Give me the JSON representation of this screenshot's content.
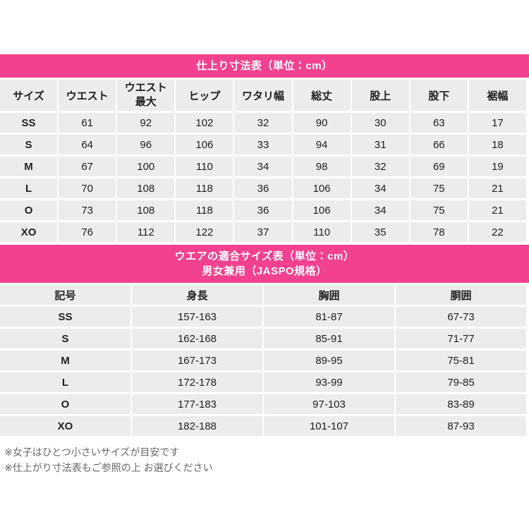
{
  "page": {
    "accent_pink": "#f2418f",
    "cell_gray": "#ececec",
    "background": "#ffffff"
  },
  "table1": {
    "title": "仕上り寸法表（単位：cm）",
    "columns": [
      "サイズ",
      "ウエスト",
      "ウエスト最大",
      "ヒップ",
      "ワタリ幅",
      "総丈",
      "股上",
      "股下",
      "裾幅"
    ],
    "rows": [
      {
        "size": "SS",
        "values": [
          "61",
          "92",
          "102",
          "32",
          "90",
          "30",
          "63",
          "17"
        ]
      },
      {
        "size": "S",
        "values": [
          "64",
          "96",
          "106",
          "33",
          "94",
          "31",
          "66",
          "18"
        ]
      },
      {
        "size": "M",
        "values": [
          "67",
          "100",
          "110",
          "34",
          "98",
          "32",
          "69",
          "19"
        ]
      },
      {
        "size": "L",
        "values": [
          "70",
          "108",
          "118",
          "36",
          "106",
          "34",
          "75",
          "21"
        ]
      },
      {
        "size": "O",
        "values": [
          "73",
          "108",
          "118",
          "36",
          "106",
          "34",
          "75",
          "21"
        ]
      },
      {
        "size": "XO",
        "values": [
          "76",
          "112",
          "122",
          "37",
          "110",
          "35",
          "78",
          "22"
        ]
      }
    ]
  },
  "table2": {
    "title_line1": "ウエアの適合サイズ表（単位：cm）",
    "title_line2": "男女兼用（JASPO規格）",
    "columns": [
      "記号",
      "身長",
      "胸囲",
      "胴囲"
    ],
    "rows": [
      {
        "size": "SS",
        "values": [
          "157-163",
          "81-87",
          "67-73"
        ]
      },
      {
        "size": "S",
        "values": [
          "162-168",
          "85-91",
          "71-77"
        ]
      },
      {
        "size": "M",
        "values": [
          "167-173",
          "89-95",
          "75-81"
        ]
      },
      {
        "size": "L",
        "values": [
          "172-178",
          "93-99",
          "79-85"
        ]
      },
      {
        "size": "O",
        "values": [
          "177-183",
          "97-103",
          "83-89"
        ]
      },
      {
        "size": "XO",
        "values": [
          "182-188",
          "101-107",
          "87-93"
        ]
      }
    ]
  },
  "notes": [
    "※女子はひとつ小さいサイズが目安です",
    "※仕上がり寸法表もご参照の上 お選びください"
  ]
}
